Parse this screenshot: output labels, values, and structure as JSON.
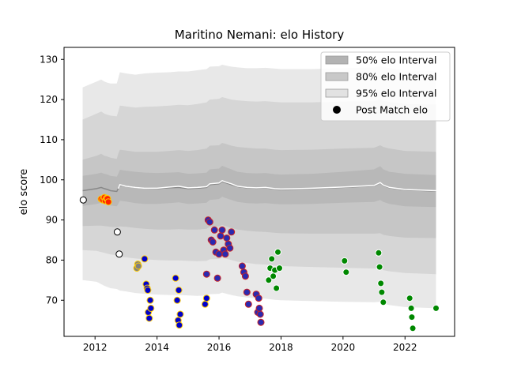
{
  "chart_data": {
    "type": "scatter",
    "title": "Maritino Nemani: elo History",
    "xlabel": "",
    "ylabel": "elo score",
    "xlim": [
      2011.0,
      2023.6
    ],
    "ylim": [
      61,
      133
    ],
    "x_ticks": [
      2012,
      2014,
      2016,
      2018,
      2020,
      2022
    ],
    "y_ticks": [
      70,
      80,
      90,
      100,
      110,
      120,
      130
    ],
    "grid": false,
    "legend_position": "top-right",
    "legend": [
      {
        "label": "50% elo Interval",
        "kind": "band",
        "color": "#b3b3b3"
      },
      {
        "label": "80% elo Interval",
        "kind": "band",
        "color": "#c8c8c8"
      },
      {
        "label": "95% elo Interval",
        "kind": "band",
        "color": "#e2e2e2"
      },
      {
        "label": "Post Match elo",
        "kind": "marker",
        "color": "#000000"
      }
    ],
    "intervals": {
      "x": [
        2011.6,
        2012.05,
        2012.2,
        2012.3,
        2012.4,
        2012.5,
        2012.7,
        2012.75,
        2012.8,
        2013.0,
        2013.3,
        2013.6,
        2014.0,
        2014.4,
        2014.7,
        2015.0,
        2015.3,
        2015.6,
        2015.7,
        2016.0,
        2016.1,
        2016.2,
        2016.4,
        2016.6,
        2016.9,
        2017.2,
        2017.5,
        2017.8,
        2018.0,
        2019.0,
        2020.0,
        2021.0,
        2021.2,
        2021.3,
        2021.5,
        2022.0,
        2023.0
      ],
      "p50_high": [
        101.0,
        101.5,
        101.8,
        101.5,
        101.3,
        101.0,
        100.8,
        101.5,
        102.5,
        102.3,
        102.0,
        101.8,
        101.7,
        101.8,
        101.9,
        101.5,
        101.6,
        101.8,
        102.6,
        102.8,
        103.5,
        103.2,
        102.6,
        102.0,
        101.7,
        101.6,
        101.7,
        101.4,
        101.3,
        101.5,
        102.0,
        102.6,
        103.4,
        102.6,
        102.0,
        101.5,
        101.2
      ],
      "p50_low": [
        93.5,
        94.0,
        94.3,
        94.0,
        93.8,
        93.6,
        93.4,
        94.0,
        94.8,
        94.6,
        94.2,
        94.0,
        94.0,
        94.2,
        94.4,
        94.0,
        94.1,
        94.3,
        95.0,
        95.2,
        95.8,
        95.5,
        95.0,
        94.5,
        94.2,
        94.1,
        94.2,
        94.0,
        93.9,
        94.0,
        94.3,
        94.5,
        95.0,
        94.5,
        94.0,
        93.4,
        93.2
      ],
      "p80_high": [
        105.0,
        106.0,
        106.5,
        106.0,
        105.8,
        105.5,
        105.2,
        106.5,
        107.5,
        107.3,
        107.0,
        107.0,
        107.0,
        107.2,
        107.4,
        107.2,
        107.4,
        107.8,
        108.5,
        108.6,
        109.2,
        109.0,
        108.5,
        108.2,
        108.0,
        107.8,
        107.8,
        107.5,
        107.4,
        107.5,
        107.8,
        108.0,
        108.6,
        108.2,
        107.8,
        107.2,
        107.0
      ],
      "p80_low": [
        88.5,
        88.6,
        88.6,
        88.5,
        88.4,
        88.3,
        88.2,
        88.3,
        88.4,
        88.3,
        88.0,
        87.8,
        87.6,
        87.6,
        87.7,
        87.6,
        87.6,
        87.8,
        88.3,
        88.4,
        88.8,
        88.5,
        88.0,
        87.6,
        87.3,
        87.1,
        87.0,
        86.8,
        86.7,
        86.6,
        86.6,
        86.6,
        86.7,
        86.3,
        86.0,
        85.6,
        85.5
      ],
      "p95_high": [
        115.0,
        116.5,
        117.0,
        116.5,
        116.2,
        116.0,
        115.8,
        117.0,
        118.5,
        118.3,
        118.0,
        118.2,
        118.3,
        118.5,
        118.7,
        118.6,
        118.9,
        119.3,
        120.0,
        120.2,
        120.6,
        120.4,
        120.0,
        119.8,
        119.6,
        119.5,
        119.6,
        119.4,
        119.3,
        119.3,
        119.5,
        119.6,
        120.0,
        119.7,
        119.4,
        118.9,
        118.8
      ],
      "p95_low": [
        82.5,
        82.3,
        82.0,
        81.8,
        81.6,
        81.4,
        81.2,
        81.0,
        80.8,
        80.7,
        80.4,
        80.2,
        80.0,
        79.9,
        79.9,
        79.8,
        79.7,
        79.8,
        80.2,
        80.3,
        80.6,
        80.4,
        80.0,
        79.6,
        79.3,
        79.0,
        78.9,
        78.6,
        78.5,
        78.3,
        78.1,
        77.9,
        78.0,
        77.5,
        77.2,
        76.8,
        76.5
      ],
      "p99_high": [
        123.0,
        124.5,
        125.0,
        124.5,
        124.2,
        124.0,
        124.0,
        125.3,
        126.8,
        126.5,
        126.2,
        126.5,
        126.7,
        126.8,
        127.0,
        127.0,
        127.3,
        127.6,
        128.2,
        128.3,
        128.7,
        128.5,
        128.2,
        128.0,
        127.8,
        127.8,
        127.9,
        127.7,
        127.6,
        127.6,
        127.8,
        128.0,
        128.4,
        128.1,
        127.8,
        127.3,
        127.2
      ],
      "p99_low": [
        75.0,
        74.6,
        74.0,
        73.6,
        73.3,
        73.0,
        72.8,
        72.6,
        72.4,
        72.2,
        71.8,
        71.6,
        71.4,
        71.3,
        71.3,
        71.2,
        71.1,
        71.2,
        71.5,
        71.6,
        71.9,
        71.7,
        71.3,
        71.0,
        70.7,
        70.5,
        70.4,
        70.1,
        70.0,
        69.8,
        69.6,
        69.5,
        69.6,
        69.1,
        68.8,
        68.3,
        68.0
      ],
      "mean_grey": [
        97.3,
        97.8,
        98.1,
        97.8,
        97.6,
        97.3,
        97.1,
        97.8,
        98.6,
        98.4,
        98.1,
        97.9,
        97.8,
        98.0,
        98.1,
        97.8,
        97.9,
        98.1,
        98.8,
        99.0,
        99.6,
        99.3,
        98.8,
        98.3,
        98.0,
        97.9,
        98.0,
        97.7,
        97.6,
        97.8,
        98.1,
        98.5,
        99.2,
        98.6,
        98.0,
        97.5,
        97.2
      ],
      "mean_white": [
        null,
        null,
        null,
        null,
        null,
        null,
        null,
        97.8,
        98.8,
        98.4,
        98.1,
        97.9,
        97.9,
        98.2,
        98.4,
        98.0,
        98.1,
        98.3,
        99.0,
        99.2,
        99.8,
        99.5,
        99.0,
        98.4,
        98.1,
        98.0,
        98.1,
        97.8,
        97.7,
        97.9,
        98.2,
        98.6,
        99.3,
        98.7,
        98.1,
        97.6,
        97.3
      ]
    },
    "series": [
      {
        "name": "Post Match elo",
        "group": "white",
        "fill": "#ffffff",
        "edge": "#000000",
        "x": [
          2011.62,
          2012.72,
          2012.78
        ],
        "y": [
          95.0,
          87.0,
          81.5
        ]
      },
      {
        "group": "red",
        "fill": "#ff2200",
        "edge": "#ffcc00",
        "x": [
          2012.2,
          2012.25,
          2012.3,
          2012.33,
          2012.37,
          2012.4,
          2012.43
        ],
        "y": [
          95.2,
          95.0,
          95.6,
          94.8,
          95.4,
          95.3,
          94.5
        ]
      },
      {
        "group": "grey",
        "fill": "#808080",
        "edge": "#ffcc00",
        "x": [
          2013.35,
          2013.38,
          2013.4
        ],
        "y": [
          78.0,
          79.0,
          78.5
        ]
      },
      {
        "group": "blue",
        "fill": "#0000cc",
        "edge": "#ffcc00",
        "x": [
          2013.6,
          2013.65,
          2013.68,
          2013.7,
          2013.72,
          2013.75,
          2013.78,
          2013.8,
          2014.6,
          2014.65,
          2014.68,
          2014.7,
          2014.72,
          2014.75,
          2015.55,
          2015.6
        ],
        "y": [
          80.3,
          74.0,
          73.0,
          72.5,
          67.0,
          65.5,
          70.0,
          68.0,
          75.5,
          70.0,
          65.0,
          72.5,
          63.8,
          66.5,
          69.0,
          70.5
        ]
      },
      {
        "group": "blue-red",
        "fill": "#2a2ab0",
        "edge": "#cc2222",
        "x": [
          2015.6,
          2015.65,
          2015.7,
          2015.75,
          2015.8,
          2015.85,
          2015.9,
          2015.95,
          2016.0,
          2016.05,
          2016.1,
          2016.15,
          2016.2,
          2016.25,
          2016.3,
          2016.35,
          2016.4,
          2016.75,
          2016.8,
          2016.85,
          2016.9,
          2016.95,
          2017.2,
          2017.25,
          2017.28,
          2017.3,
          2017.33,
          2017.35
        ],
        "y": [
          76.5,
          90.0,
          89.5,
          85.0,
          84.5,
          87.5,
          82.0,
          75.5,
          81.5,
          86.0,
          87.5,
          82.5,
          81.5,
          85.5,
          84.0,
          83.0,
          87.0,
          78.5,
          77.0,
          76.0,
          72.0,
          69.0,
          71.5,
          67.0,
          70.5,
          68.0,
          66.5,
          64.5
        ]
      },
      {
        "group": "green",
        "fill": "#008800",
        "edge": "#ffffff",
        "x": [
          2017.6,
          2017.65,
          2017.7,
          2017.75,
          2017.8,
          2017.85,
          2017.9,
          2017.95,
          2020.05,
          2020.1,
          2021.15,
          2021.18,
          2021.22,
          2021.25,
          2021.3,
          2022.15,
          2022.2,
          2022.22,
          2022.25,
          2023.0
        ],
        "y": [
          75.0,
          78.0,
          80.3,
          76.0,
          77.5,
          73.0,
          82.0,
          78.0,
          79.8,
          77.0,
          81.8,
          78.3,
          74.2,
          72.0,
          69.5,
          70.5,
          68.0,
          65.8,
          63.0,
          68.0
        ]
      }
    ]
  }
}
